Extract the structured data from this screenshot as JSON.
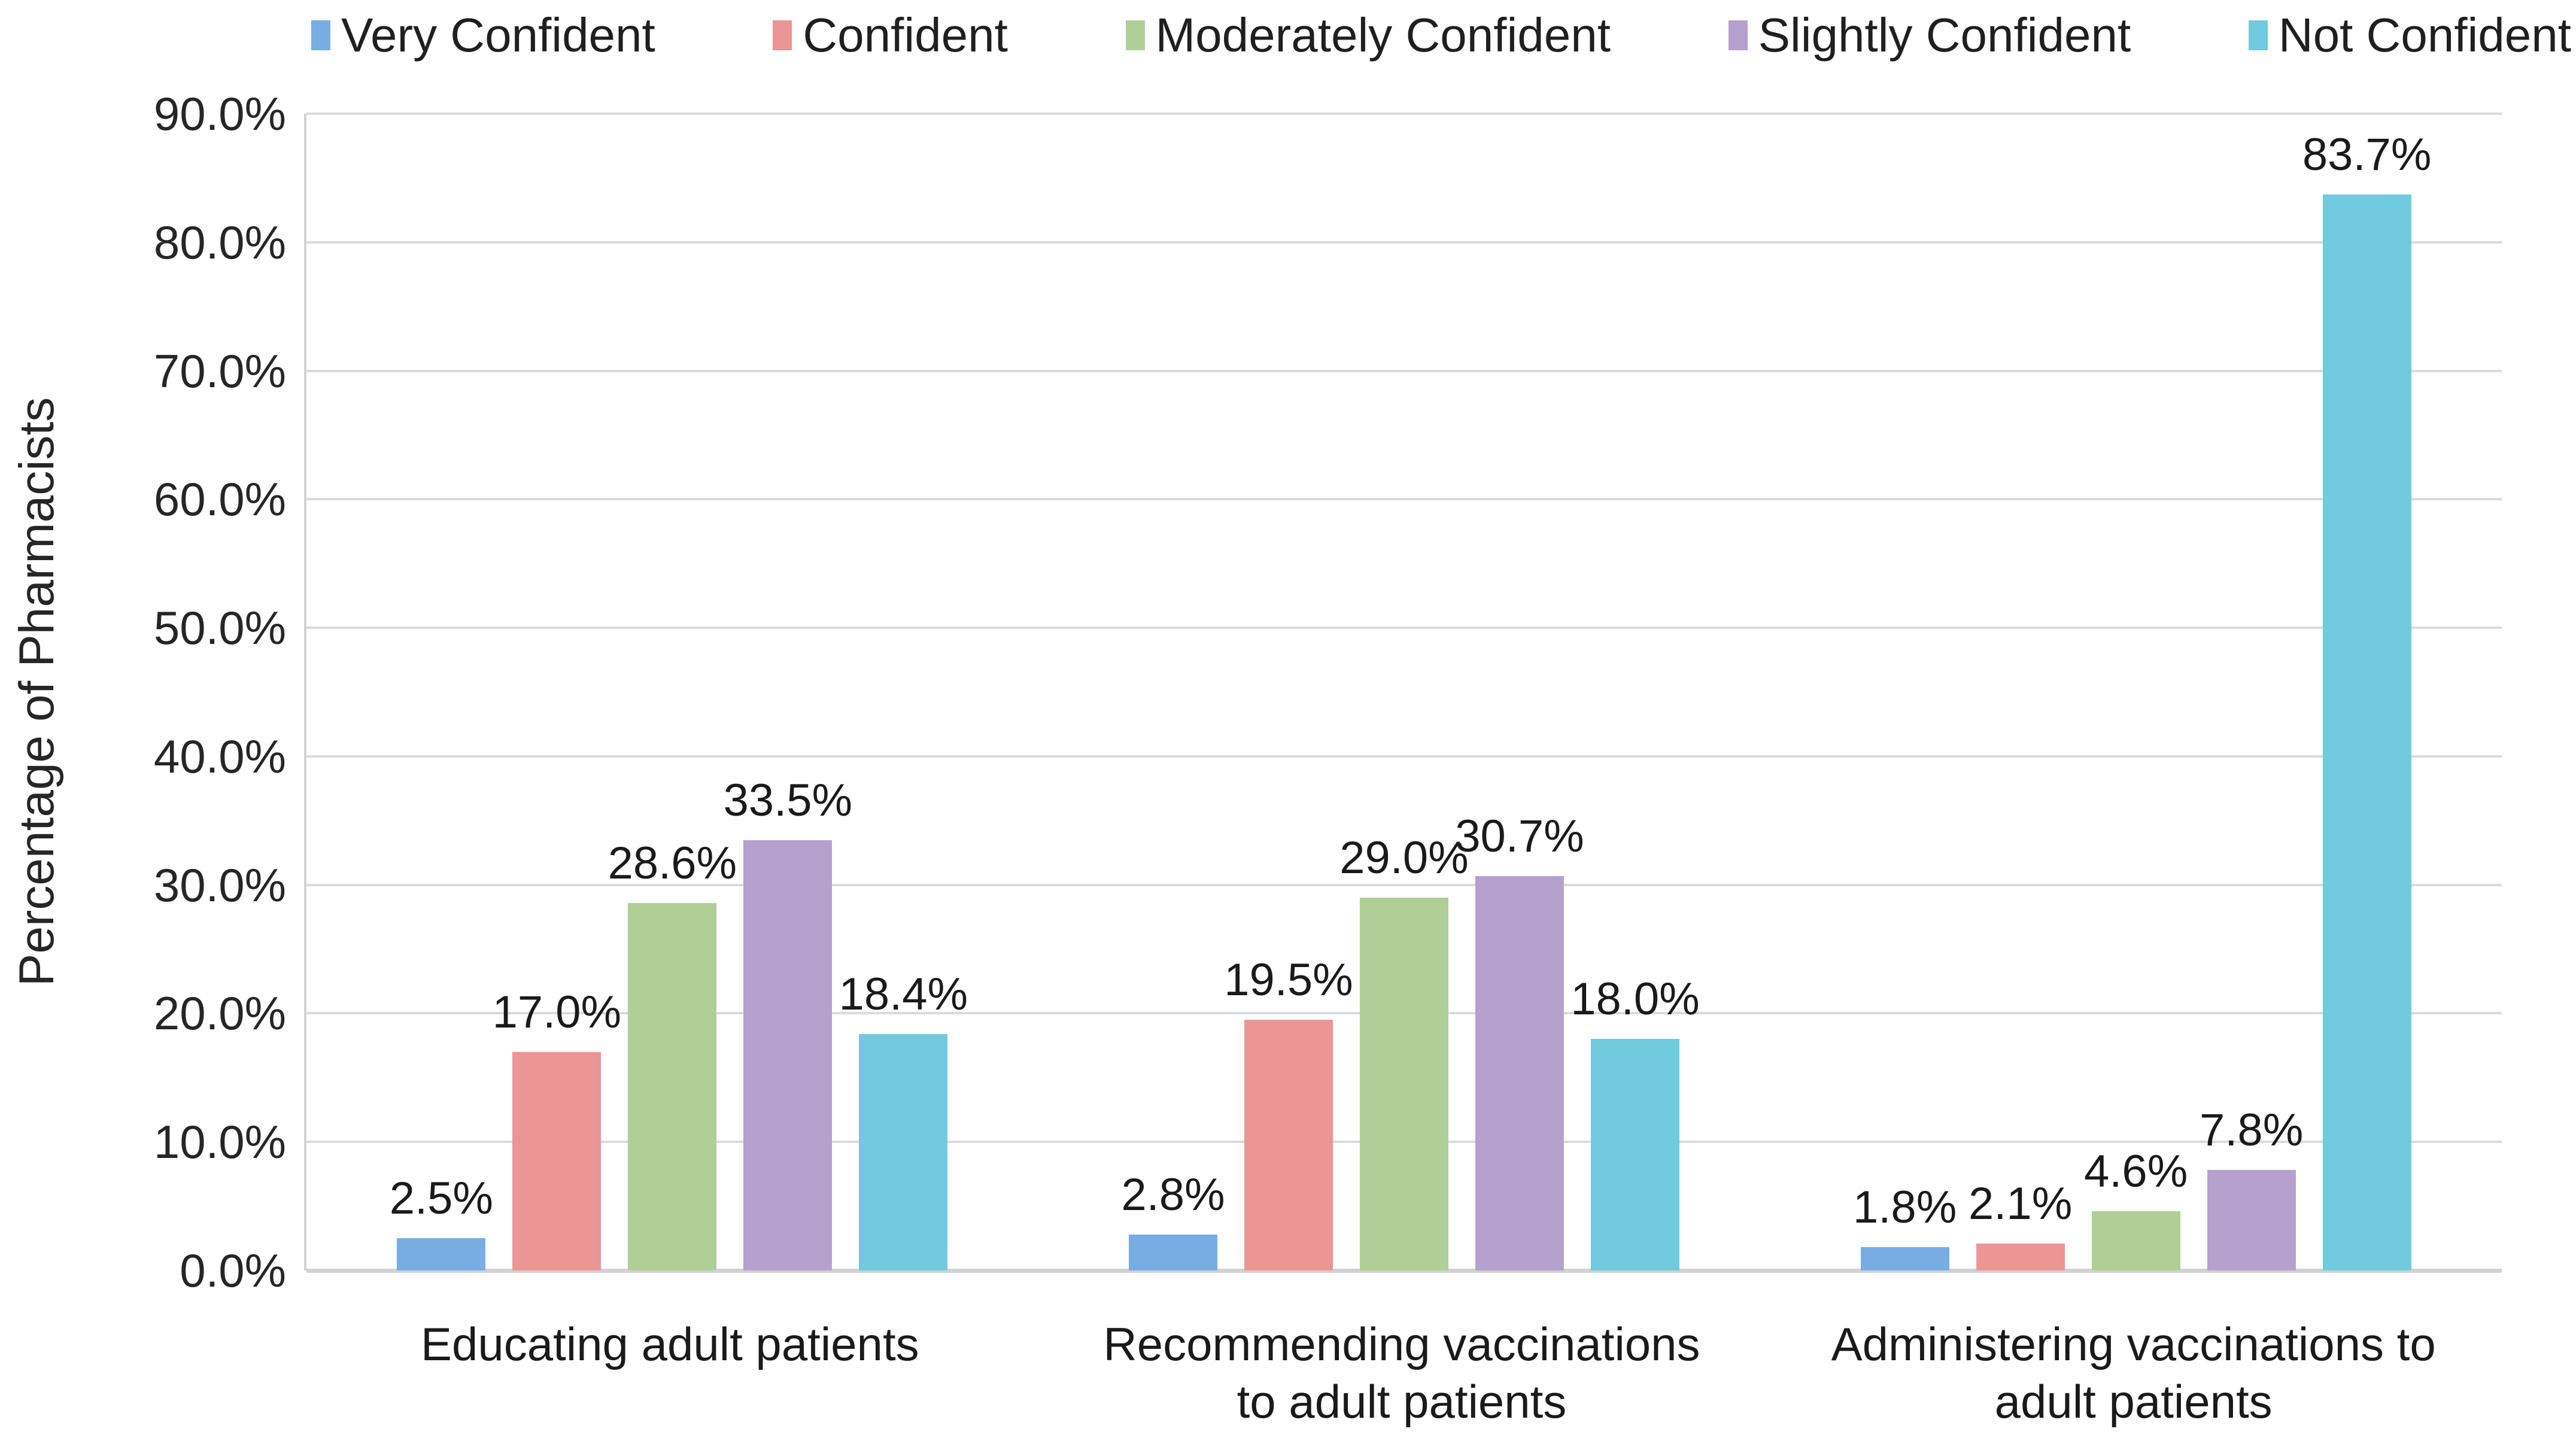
{
  "colors": {
    "very_confident": "#77ADE3",
    "confident": "#EB9595",
    "moderately_confident": "#B0CF97",
    "slightly_confident": "#B4A1CE",
    "not_confident": "#70CBDF",
    "gridline": "#dbdbdb",
    "axis_line": "#d2d2d2",
    "text": "#1f1f1f"
  },
  "legend": {
    "items": [
      {
        "label": "Very Confident",
        "color": "#77ADE3"
      },
      {
        "label": "Confident",
        "color": "#EB9595"
      },
      {
        "label": "Moderately Confident",
        "color": "#B0CF97"
      },
      {
        "label": "Slightly Confident",
        "color": "#B4A1CE"
      },
      {
        "label": "Not Confident",
        "color": "#70CBDF"
      }
    ]
  },
  "y_axis": {
    "title": "Percentage of Pharmacists",
    "tick_labels": [
      "90.0%",
      "80.0%",
      "70.0%",
      "60.0%",
      "50.0%",
      "40.0%",
      "30.0%",
      "20.0%",
      "10.0%",
      "0.0%"
    ]
  },
  "chart_data": {
    "type": "bar",
    "title": "",
    "xlabel": "",
    "ylabel": "Percentage of Pharmacists",
    "ylim": [
      0,
      90
    ],
    "ytick_step": 10,
    "grid": true,
    "legend_position": "top",
    "categories": [
      "Educating adult patients",
      "Recommending vaccinations to adult patients",
      "Administering vaccinations to adult patients"
    ],
    "category_label_lines": [
      [
        "Educating adult patients"
      ],
      [
        "Recommending vaccinations",
        "to adult patients"
      ],
      [
        "Administering vaccinations to",
        "adult patients"
      ]
    ],
    "series": [
      {
        "name": "Very Confident",
        "color": "#77ADE3",
        "values": [
          2.5,
          2.8,
          1.8
        ],
        "labels": [
          "2.5%",
          "2.8%",
          "1.8%"
        ]
      },
      {
        "name": "Confident",
        "color": "#EB9595",
        "values": [
          17.0,
          19.5,
          2.1
        ],
        "labels": [
          "17.0%",
          "19.5%",
          "2.1%"
        ]
      },
      {
        "name": "Moderately Confident",
        "color": "#B0CF97",
        "values": [
          28.6,
          29.0,
          4.6
        ],
        "labels": [
          "28.6%",
          "29.0%",
          "4.6%"
        ]
      },
      {
        "name": "Slightly Confident",
        "color": "#B4A1CE",
        "values": [
          33.5,
          30.7,
          7.8
        ],
        "labels": [
          "33.5%",
          "30.7%",
          "7.8%"
        ]
      },
      {
        "name": "Not Confident",
        "color": "#70CBDF",
        "values": [
          18.4,
          18.0,
          83.7
        ],
        "labels": [
          "18.4%",
          "18.0%",
          "83.7%"
        ]
      }
    ]
  }
}
